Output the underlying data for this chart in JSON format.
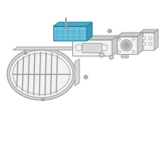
{
  "background_color": "#ffffff",
  "fig_width": 2.0,
  "fig_height": 2.0,
  "dpi": 100,
  "cu_fill": "#6ec6e0",
  "cu_edge": "#2a7fa0",
  "gray_fill": "#e8e8e8",
  "gray_edge": "#999999",
  "gray_dark": "#cccccc",
  "white": "#ffffff",
  "lt_gray": "#f2f2f2"
}
